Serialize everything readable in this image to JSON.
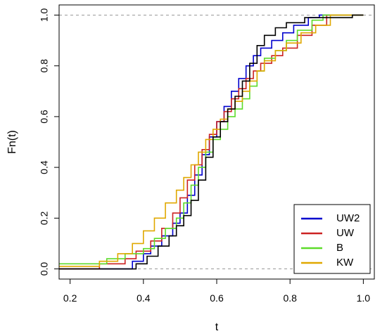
{
  "chart_data": {
    "type": "line",
    "step": true,
    "xlabel": "t",
    "ylabel": "Fn(t)",
    "xlim": [
      0.17,
      1.03
    ],
    "ylim": [
      -0.04,
      1.04
    ],
    "x_ticks": [
      "0.2",
      "0.4",
      "0.6",
      "0.8",
      "1.0"
    ],
    "y_ticks": [
      "0.0",
      "0.2",
      "0.4",
      "0.6",
      "0.8",
      "1.0"
    ],
    "reference_lines": [
      0,
      1
    ],
    "legend_position": "bottom-right",
    "series": [
      {
        "name": "UW2",
        "color": "#0000CD",
        "points": [
          [
            0.17,
            0
          ],
          [
            0.33,
            0
          ],
          [
            0.37,
            0.03
          ],
          [
            0.4,
            0.06
          ],
          [
            0.42,
            0.09
          ],
          [
            0.45,
            0.13
          ],
          [
            0.48,
            0.18
          ],
          [
            0.5,
            0.22
          ],
          [
            0.52,
            0.29
          ],
          [
            0.54,
            0.37
          ],
          [
            0.56,
            0.45
          ],
          [
            0.58,
            0.52
          ],
          [
            0.6,
            0.58
          ],
          [
            0.62,
            0.64
          ],
          [
            0.64,
            0.7
          ],
          [
            0.66,
            0.75
          ],
          [
            0.68,
            0.8
          ],
          [
            0.7,
            0.84
          ],
          [
            0.72,
            0.87
          ],
          [
            0.75,
            0.9
          ],
          [
            0.78,
            0.93
          ],
          [
            0.81,
            0.96
          ],
          [
            0.85,
            0.99
          ],
          [
            0.88,
            1.0
          ],
          [
            1.0,
            1.0
          ]
        ]
      },
      {
        "name": "UW",
        "color": "#CC2222",
        "points": [
          [
            0.17,
            0
          ],
          [
            0.25,
            0
          ],
          [
            0.28,
            0.02
          ],
          [
            0.35,
            0.04
          ],
          [
            0.38,
            0.07
          ],
          [
            0.42,
            0.11
          ],
          [
            0.45,
            0.16
          ],
          [
            0.48,
            0.22
          ],
          [
            0.5,
            0.28
          ],
          [
            0.52,
            0.35
          ],
          [
            0.54,
            0.41
          ],
          [
            0.56,
            0.47
          ],
          [
            0.58,
            0.53
          ],
          [
            0.6,
            0.58
          ],
          [
            0.62,
            0.62
          ],
          [
            0.64,
            0.67
          ],
          [
            0.66,
            0.71
          ],
          [
            0.68,
            0.75
          ],
          [
            0.7,
            0.78
          ],
          [
            0.72,
            0.81
          ],
          [
            0.75,
            0.84
          ],
          [
            0.78,
            0.87
          ],
          [
            0.82,
            0.92
          ],
          [
            0.86,
            0.96
          ],
          [
            0.9,
            1.0
          ],
          [
            1.0,
            1.0
          ]
        ]
      },
      {
        "name": "B",
        "color": "#5DDB2A",
        "points": [
          [
            0.17,
            0.02
          ],
          [
            0.3,
            0.04
          ],
          [
            0.35,
            0.06
          ],
          [
            0.4,
            0.08
          ],
          [
            0.43,
            0.12
          ],
          [
            0.46,
            0.16
          ],
          [
            0.49,
            0.2
          ],
          [
            0.51,
            0.26
          ],
          [
            0.53,
            0.33
          ],
          [
            0.55,
            0.4
          ],
          [
            0.57,
            0.46
          ],
          [
            0.59,
            0.51
          ],
          [
            0.61,
            0.55
          ],
          [
            0.63,
            0.6
          ],
          [
            0.65,
            0.63
          ],
          [
            0.67,
            0.67
          ],
          [
            0.69,
            0.72
          ],
          [
            0.71,
            0.78
          ],
          [
            0.73,
            0.83
          ],
          [
            0.76,
            0.86
          ],
          [
            0.79,
            0.9
          ],
          [
            0.82,
            0.94
          ],
          [
            0.86,
            0.98
          ],
          [
            0.89,
            1.0
          ],
          [
            1.0,
            1.0
          ]
        ]
      },
      {
        "name": "KW",
        "color": "#E0A800",
        "points": [
          [
            0.17,
            0.01
          ],
          [
            0.28,
            0.03
          ],
          [
            0.33,
            0.06
          ],
          [
            0.37,
            0.1
          ],
          [
            0.4,
            0.15
          ],
          [
            0.43,
            0.2
          ],
          [
            0.46,
            0.26
          ],
          [
            0.49,
            0.31
          ],
          [
            0.51,
            0.36
          ],
          [
            0.53,
            0.41
          ],
          [
            0.55,
            0.46
          ],
          [
            0.57,
            0.51
          ],
          [
            0.59,
            0.55
          ],
          [
            0.61,
            0.59
          ],
          [
            0.63,
            0.63
          ],
          [
            0.65,
            0.66
          ],
          [
            0.67,
            0.7
          ],
          [
            0.69,
            0.74
          ],
          [
            0.71,
            0.78
          ],
          [
            0.73,
            0.82
          ],
          [
            0.76,
            0.86
          ],
          [
            0.79,
            0.89
          ],
          [
            0.83,
            0.93
          ],
          [
            0.87,
            0.96
          ],
          [
            0.91,
            1.0
          ],
          [
            1.0,
            1.0
          ]
        ]
      },
      {
        "name": "",
        "color": "#000000",
        "points": [
          [
            0.17,
            0
          ],
          [
            0.35,
            0
          ],
          [
            0.38,
            0.02
          ],
          [
            0.41,
            0.05
          ],
          [
            0.44,
            0.09
          ],
          [
            0.47,
            0.13
          ],
          [
            0.49,
            0.17
          ],
          [
            0.51,
            0.21
          ],
          [
            0.53,
            0.27
          ],
          [
            0.55,
            0.35
          ],
          [
            0.57,
            0.44
          ],
          [
            0.59,
            0.52
          ],
          [
            0.61,
            0.58
          ],
          [
            0.63,
            0.63
          ],
          [
            0.65,
            0.68
          ],
          [
            0.67,
            0.74
          ],
          [
            0.69,
            0.81
          ],
          [
            0.71,
            0.88
          ],
          [
            0.73,
            0.92
          ],
          [
            0.76,
            0.95
          ],
          [
            0.79,
            0.97
          ],
          [
            0.84,
            0.99
          ],
          [
            0.95,
            0.99
          ],
          [
            0.97,
            1.0
          ],
          [
            1.0,
            1.0
          ]
        ]
      }
    ]
  }
}
